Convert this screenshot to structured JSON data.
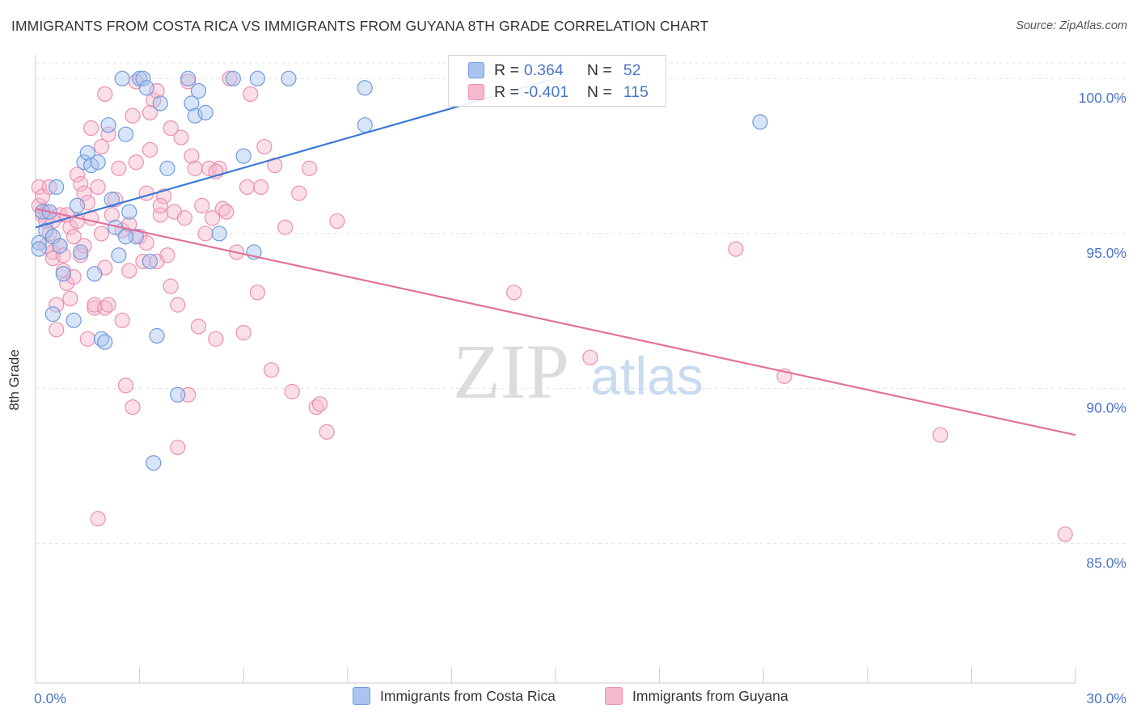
{
  "title": "IMMIGRANTS FROM COSTA RICA VS IMMIGRANTS FROM GUYANA 8TH GRADE CORRELATION CHART",
  "source": "Source: ZipAtlas.com",
  "watermark": {
    "zip": "ZIP",
    "atlas": "atlas"
  },
  "colors": {
    "blue_fill": "#a9c4ee",
    "blue_stroke": "#6f9be0",
    "blue_line": "#3b78d6",
    "pink_fill": "#f6b9cd",
    "pink_stroke": "#ec8fb0",
    "pink_line": "#e2729a",
    "axis_text": "#4a74c9",
    "grid": "#e3e3e3"
  },
  "legend": {
    "rows": [
      {
        "r_label": "R =",
        "r_value": "0.364",
        "n_label": "N =",
        "n_value": "52"
      },
      {
        "r_label": "R =",
        "r_value": "-0.401",
        "n_label": "N =",
        "n_value": "115"
      }
    ]
  },
  "bottom_legend": [
    "Immigrants from Costa Rica",
    "Immigrants from Guyana"
  ],
  "chart_data": {
    "type": "scatter",
    "title": "IMMIGRANTS FROM COSTA RICA VS IMMIGRANTS FROM GUYANA 8TH GRADE CORRELATION CHART",
    "xlabel": "",
    "ylabel": "8th Grade",
    "xlim": [
      0,
      30
    ],
    "ylim": [
      80.5,
      100.6
    ],
    "x_tick_labels": [
      "0.0%",
      "30.0%"
    ],
    "y_ticks": [
      85,
      90,
      95,
      100
    ],
    "y_tick_labels": [
      "85.0%",
      "90.0%",
      "95.0%",
      "100.0%"
    ],
    "series": [
      {
        "name": "Immigrants from Costa Rica",
        "color": "blue",
        "trend": {
          "x": [
            0,
            15
          ],
          "y": [
            95.2,
            100.0
          ]
        },
        "points": [
          [
            0.1,
            94.7
          ],
          [
            0.1,
            94.5
          ],
          [
            0.2,
            95.7
          ],
          [
            0.3,
            95.1
          ],
          [
            0.4,
            95.7
          ],
          [
            0.5,
            94.9
          ],
          [
            0.5,
            92.4
          ],
          [
            0.6,
            96.5
          ],
          [
            0.8,
            93.7
          ],
          [
            1.1,
            92.2
          ],
          [
            1.2,
            95.9
          ],
          [
            1.3,
            94.4
          ],
          [
            1.4,
            97.3
          ],
          [
            1.5,
            97.6
          ],
          [
            1.6,
            97.2
          ],
          [
            1.7,
            93.7
          ],
          [
            1.8,
            97.3
          ],
          [
            1.9,
            91.6
          ],
          [
            2.0,
            91.5
          ],
          [
            2.1,
            98.5
          ],
          [
            2.2,
            96.1
          ],
          [
            2.3,
            95.2
          ],
          [
            2.4,
            94.3
          ],
          [
            2.5,
            100.0
          ],
          [
            2.6,
            98.2
          ],
          [
            2.7,
            95.7
          ],
          [
            2.9,
            94.9
          ],
          [
            3.0,
            100.0
          ],
          [
            3.1,
            100.0
          ],
          [
            3.2,
            99.7
          ],
          [
            3.3,
            94.1
          ],
          [
            3.5,
            91.7
          ],
          [
            3.6,
            99.2
          ],
          [
            3.8,
            97.1
          ],
          [
            4.1,
            89.8
          ],
          [
            4.4,
            100.0
          ],
          [
            4.5,
            99.2
          ],
          [
            4.6,
            98.8
          ],
          [
            4.7,
            99.6
          ],
          [
            4.9,
            98.9
          ],
          [
            5.3,
            95.0
          ],
          [
            5.7,
            100.0
          ],
          [
            6.0,
            97.5
          ],
          [
            6.3,
            94.4
          ],
          [
            6.4,
            100.0
          ],
          [
            7.3,
            100.0
          ],
          [
            9.5,
            98.5
          ],
          [
            9.5,
            99.7
          ],
          [
            3.4,
            87.6
          ],
          [
            20.9,
            98.6
          ],
          [
            2.6,
            94.9
          ],
          [
            0.7,
            94.6
          ]
        ]
      },
      {
        "name": "Immigrants from Guyana",
        "color": "pink",
        "trend": {
          "x": [
            0,
            30
          ],
          "y": [
            95.8,
            88.5
          ]
        },
        "points": [
          [
            0.1,
            96.5
          ],
          [
            0.1,
            95.9
          ],
          [
            0.2,
            96.2
          ],
          [
            0.2,
            95.6
          ],
          [
            0.3,
            95.4
          ],
          [
            0.3,
            94.6
          ],
          [
            0.4,
            96.5
          ],
          [
            0.5,
            94.4
          ],
          [
            0.5,
            94.2
          ],
          [
            0.6,
            92.7
          ],
          [
            0.6,
            91.9
          ],
          [
            0.7,
            95.6
          ],
          [
            0.7,
            94.6
          ],
          [
            0.8,
            93.8
          ],
          [
            0.8,
            94.3
          ],
          [
            0.9,
            93.4
          ],
          [
            1.0,
            95.2
          ],
          [
            1.0,
            92.9
          ],
          [
            1.1,
            93.6
          ],
          [
            1.2,
            96.9
          ],
          [
            1.2,
            95.4
          ],
          [
            1.3,
            96.6
          ],
          [
            1.3,
            94.3
          ],
          [
            1.4,
            96.3
          ],
          [
            1.5,
            96.0
          ],
          [
            1.5,
            91.6
          ],
          [
            1.6,
            98.4
          ],
          [
            1.6,
            95.5
          ],
          [
            1.7,
            92.6
          ],
          [
            1.7,
            92.7
          ],
          [
            1.8,
            96.5
          ],
          [
            1.9,
            97.8
          ],
          [
            1.9,
            95.0
          ],
          [
            2.0,
            93.9
          ],
          [
            2.0,
            92.6
          ],
          [
            2.0,
            99.5
          ],
          [
            2.1,
            92.7
          ],
          [
            2.2,
            95.6
          ],
          [
            2.3,
            96.1
          ],
          [
            2.4,
            97.1
          ],
          [
            2.5,
            95.1
          ],
          [
            2.5,
            92.2
          ],
          [
            2.6,
            90.1
          ],
          [
            2.7,
            95.3
          ],
          [
            2.8,
            98.8
          ],
          [
            2.9,
            97.3
          ],
          [
            3.0,
            94.9
          ],
          [
            3.1,
            94.1
          ],
          [
            3.2,
            96.3
          ],
          [
            3.2,
            94.7
          ],
          [
            3.3,
            97.7
          ],
          [
            3.4,
            99.3
          ],
          [
            3.5,
            99.6
          ],
          [
            3.5,
            94.1
          ],
          [
            3.6,
            95.6
          ],
          [
            3.7,
            96.2
          ],
          [
            3.8,
            94.3
          ],
          [
            3.9,
            93.3
          ],
          [
            4.0,
            95.7
          ],
          [
            4.1,
            92.7
          ],
          [
            4.2,
            98.1
          ],
          [
            4.3,
            95.5
          ],
          [
            4.4,
            99.9
          ],
          [
            4.5,
            97.5
          ],
          [
            4.6,
            97.1
          ],
          [
            4.7,
            92.0
          ],
          [
            4.8,
            95.9
          ],
          [
            4.9,
            95.0
          ],
          [
            5.0,
            97.1
          ],
          [
            5.1,
            95.5
          ],
          [
            5.2,
            91.6
          ],
          [
            5.3,
            97.1
          ],
          [
            5.4,
            95.8
          ],
          [
            5.5,
            95.7
          ],
          [
            5.6,
            100.0
          ],
          [
            5.8,
            94.4
          ],
          [
            6.0,
            91.8
          ],
          [
            6.1,
            96.5
          ],
          [
            6.2,
            99.5
          ],
          [
            6.4,
            93.1
          ],
          [
            6.5,
            96.5
          ],
          [
            6.6,
            97.8
          ],
          [
            6.8,
            90.6
          ],
          [
            7.2,
            95.2
          ],
          [
            7.4,
            89.9
          ],
          [
            7.6,
            96.3
          ],
          [
            7.9,
            97.1
          ],
          [
            8.1,
            89.4
          ],
          [
            8.2,
            89.5
          ],
          [
            8.4,
            88.6
          ],
          [
            8.7,
            95.4
          ],
          [
            0.3,
            95.7
          ],
          [
            0.5,
            95.4
          ],
          [
            1.8,
            85.8
          ],
          [
            2.9,
            99.9
          ],
          [
            3.3,
            98.9
          ],
          [
            3.6,
            95.9
          ],
          [
            4.1,
            88.1
          ],
          [
            1.4,
            94.6
          ],
          [
            2.7,
            93.8
          ],
          [
            3.9,
            98.4
          ],
          [
            5.2,
            97.0
          ],
          [
            6.9,
            97.2
          ],
          [
            0.9,
            95.6
          ],
          [
            13.8,
            93.1
          ],
          [
            16.0,
            91.0
          ],
          [
            20.2,
            94.5
          ],
          [
            21.6,
            90.4
          ],
          [
            26.1,
            88.5
          ],
          [
            29.7,
            85.3
          ],
          [
            0.4,
            95.0
          ],
          [
            1.1,
            94.9
          ],
          [
            2.1,
            98.2
          ],
          [
            4.4,
            89.8
          ],
          [
            2.8,
            89.4
          ]
        ]
      }
    ]
  }
}
